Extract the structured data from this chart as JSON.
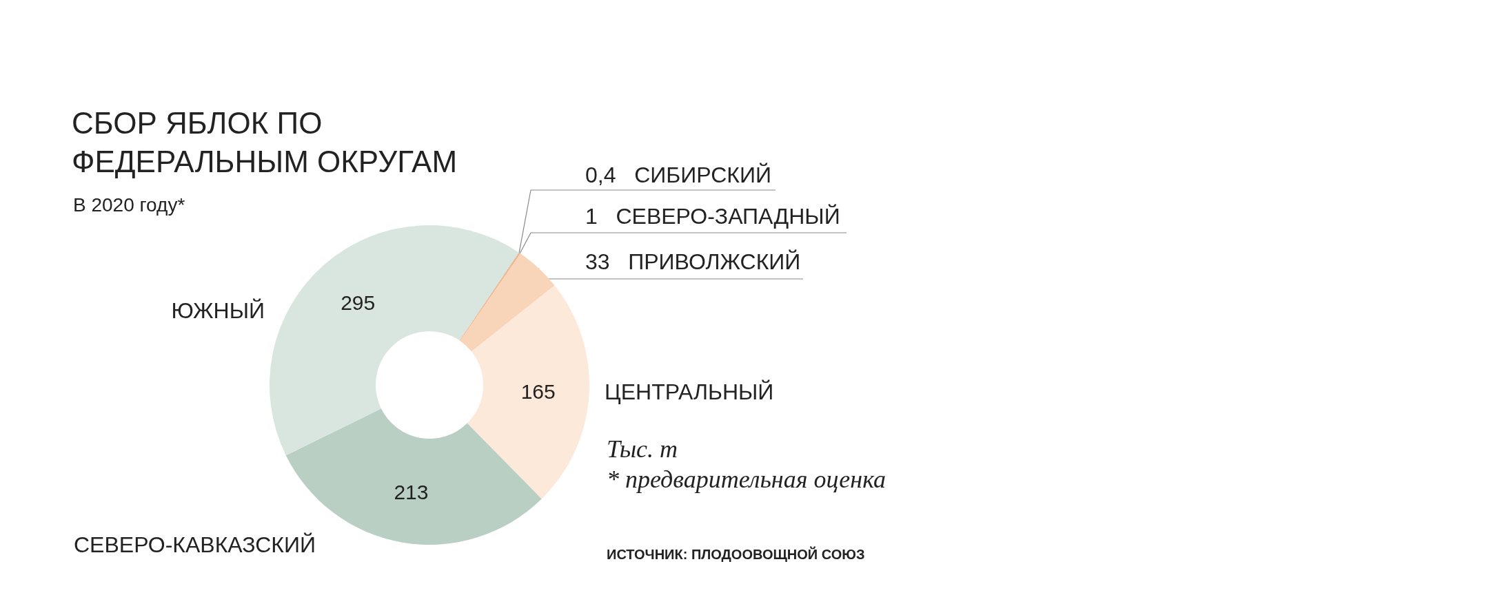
{
  "chart_data": {
    "type": "donut",
    "title": "СБОР ЯБЛОК ПО ФЕДЕРАЛЬНЫМ ОКРУГАМ",
    "subtitle": "В 2020 году*",
    "categories": [
      "СИБИРСКИЙ",
      "СЕВЕРО-ЗАПАДНЫЙ",
      "ПРИВОЛЖСКИЙ",
      "ЦЕНТРАЛЬНЫЙ",
      "СЕВЕРО-КАВКАЗСКИЙ",
      "ЮЖНЫЙ"
    ],
    "values": [
      0.4,
      1,
      33,
      165,
      213,
      295
    ],
    "colors": [
      "#e39a68",
      "#eeb48c",
      "#f8d4b8",
      "#fde9da",
      "#b9cfc4",
      "#d9e6df"
    ],
    "value_labels": [
      "0,4",
      "1",
      "33",
      "165",
      "213",
      "295"
    ],
    "legend": false,
    "annotations": [
      "Тыс. т",
      "* предварительная оценка",
      "ИСТОЧНИК: ПЛОДООВОЩНОЙ СОЮЗ"
    ]
  }
}
